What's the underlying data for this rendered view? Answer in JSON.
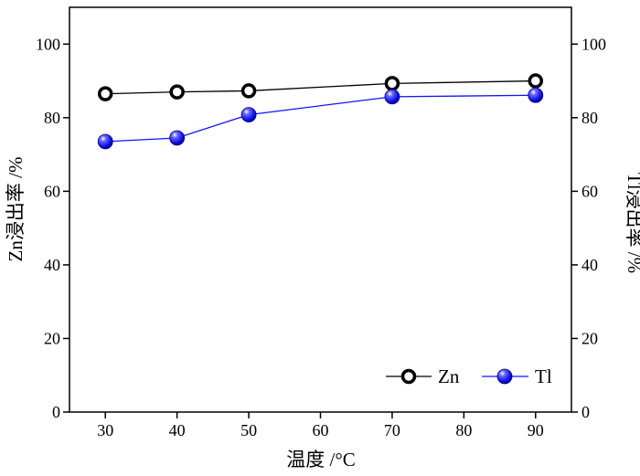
{
  "chart_data": {
    "type": "line",
    "x": [
      30,
      40,
      50,
      70,
      90
    ],
    "xticks": [
      30,
      40,
      50,
      60,
      70,
      80,
      90
    ],
    "xlabel": "温度 /°C",
    "ylabel_left": "Zn浸出率 /%",
    "ylabel_right": "Tl浸出率 /%",
    "ylim": [
      0,
      110
    ],
    "yticks": [
      0,
      20,
      40,
      60,
      80,
      100
    ],
    "grid": false,
    "legend_position": "bottom-right",
    "series": [
      {
        "name": "Zn",
        "values": [
          86.5,
          87.0,
          87.3,
          89.3,
          90.0
        ],
        "color": "#000000",
        "marker": "open-circle"
      },
      {
        "name": "Tl",
        "values": [
          73.5,
          74.5,
          80.8,
          85.7,
          86.1
        ],
        "color": "#1414ff",
        "marker": "filled-sphere"
      }
    ]
  }
}
